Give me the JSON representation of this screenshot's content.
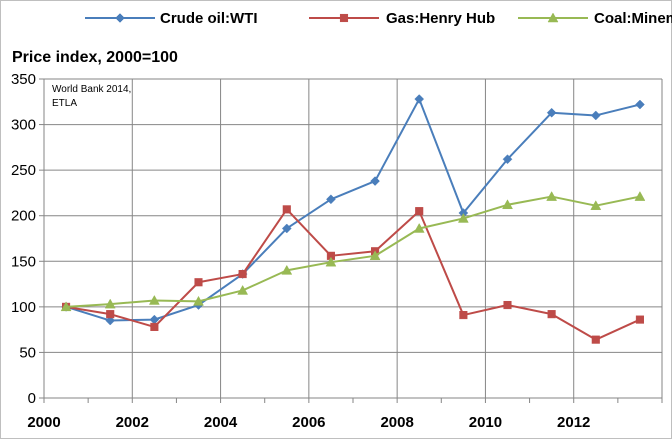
{
  "chart_data": {
    "type": "line",
    "title": "Price index, 2000=100",
    "annotation": [
      "World Bank 2014,",
      "ETLA"
    ],
    "xlabel": "",
    "ylabel": "",
    "x": [
      2000,
      2001,
      2002,
      2003,
      2004,
      2005,
      2006,
      2007,
      2008,
      2009,
      2010,
      2011,
      2012,
      2013
    ],
    "xticks": [
      2000,
      2002,
      2004,
      2006,
      2008,
      2010,
      2012
    ],
    "xtick_labels": [
      "2000",
      "2002",
      "2004",
      "2006",
      "2008",
      "2010",
      "2012"
    ],
    "xlim": [
      2000,
      2014
    ],
    "ylim": [
      0,
      350
    ],
    "yticks": [
      0,
      50,
      100,
      150,
      200,
      250,
      300,
      350
    ],
    "ytick_labels": [
      "0",
      "50",
      "100",
      "150",
      "200",
      "250",
      "300",
      "350"
    ],
    "grid": true,
    "legend_position": "top",
    "series": [
      {
        "name": "Crude oil:WTI",
        "color": "#4A7EBB",
        "marker": "diamond",
        "values": [
          100,
          85,
          86,
          102,
          136,
          186,
          218,
          238,
          328,
          203,
          262,
          313,
          310,
          322
        ]
      },
      {
        "name": "Gas:Henry Hub",
        "color": "#BE4B48",
        "marker": "square",
        "values": [
          100,
          92,
          78,
          127,
          136,
          207,
          156,
          161,
          205,
          91,
          102,
          92,
          64,
          86
        ]
      },
      {
        "name": "Coal:Minemouth",
        "color": "#98B954",
        "marker": "triangle",
        "values": [
          100,
          103,
          107,
          106,
          118,
          140,
          149,
          156,
          186,
          197,
          212,
          221,
          211,
          221
        ]
      }
    ]
  }
}
